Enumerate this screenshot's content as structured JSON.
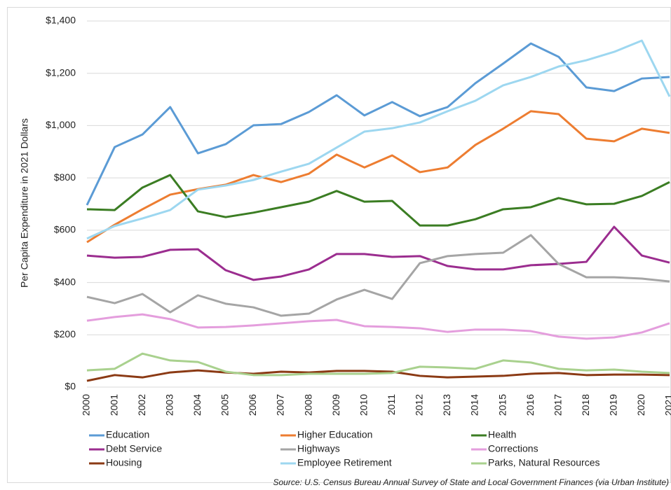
{
  "chart_data": {
    "type": "line",
    "y_label": "Per Capita Expenditure in  2021 Dollars",
    "source": "Source: U.S. Census Bureau Annual Survey of State and Local Government Finances (via Urban Institute)",
    "x": [
      2000,
      2001,
      2002,
      2003,
      2004,
      2005,
      2006,
      2007,
      2008,
      2009,
      2010,
      2011,
      2012,
      2013,
      2014,
      2015,
      2016,
      2017,
      2018,
      2019,
      2020,
      2021
    ],
    "xlim": [
      2000,
      2021
    ],
    "ylim": [
      0,
      1400
    ],
    "yticks": [
      {
        "value": 0,
        "label": "$0"
      },
      {
        "value": 200,
        "label": "$200"
      },
      {
        "value": 400,
        "label": "$400"
      },
      {
        "value": 600,
        "label": "$600"
      },
      {
        "value": 800,
        "label": "$800"
      },
      {
        "value": 1000,
        "label": "$1,000"
      },
      {
        "value": 1200,
        "label": "$1,200"
      },
      {
        "value": 1400,
        "label": "$1,400"
      }
    ],
    "grid": true,
    "legend": "bottom",
    "series": [
      {
        "name": "Education",
        "color": "#5b9bd5",
        "values": [
          696,
          918,
          966,
          1071,
          894,
          929,
          1001,
          1006,
          1052,
          1116,
          1039,
          1090,
          1036,
          1071,
          1162,
          1237,
          1314,
          1263,
          1146,
          1132,
          1180,
          1186
        ]
      },
      {
        "name": "Higher Education",
        "color": "#ed7d31",
        "values": [
          554,
          621,
          680,
          736,
          757,
          774,
          811,
          784,
          816,
          889,
          840,
          886,
          822,
          840,
          926,
          988,
          1055,
          1044,
          950,
          940,
          988,
          972
        ]
      },
      {
        "name": "Health",
        "color": "#3b7d23",
        "values": [
          680,
          677,
          763,
          811,
          672,
          650,
          667,
          688,
          709,
          750,
          709,
          712,
          618,
          618,
          642,
          680,
          688,
          723,
          699,
          701,
          731,
          784
        ]
      },
      {
        "name": "Debt Service",
        "color": "#9b2d8f",
        "values": [
          503,
          495,
          498,
          525,
          527,
          447,
          410,
          423,
          450,
          509,
          509,
          498,
          501,
          463,
          450,
          450,
          466,
          471,
          479,
          613,
          503,
          476
        ]
      },
      {
        "name": "Highways",
        "color": "#a5a5a5",
        "values": [
          345,
          321,
          356,
          286,
          351,
          319,
          305,
          273,
          281,
          335,
          372,
          337,
          474,
          501,
          509,
          514,
          581,
          471,
          420,
          420,
          415,
          404
        ]
      },
      {
        "name": "Corrections",
        "color": "#e49edd",
        "values": [
          254,
          268,
          278,
          260,
          228,
          230,
          236,
          244,
          252,
          257,
          233,
          230,
          225,
          211,
          220,
          220,
          214,
          193,
          185,
          190,
          209,
          244
        ]
      },
      {
        "name": "Housing",
        "color": "#8b3a14",
        "values": [
          24,
          46,
          37,
          56,
          64,
          56,
          51,
          59,
          56,
          62,
          62,
          59,
          43,
          37,
          40,
          43,
          51,
          54,
          46,
          48,
          48,
          46
        ]
      },
      {
        "name": "Employee Retirement",
        "color": "#9dd7f0",
        "values": [
          568,
          616,
          645,
          677,
          755,
          771,
          792,
          824,
          854,
          916,
          977,
          990,
          1012,
          1055,
          1095,
          1154,
          1186,
          1226,
          1250,
          1282,
          1325,
          1111
        ]
      },
      {
        "name": "Parks, Natural Resources",
        "color": "#a9d18e",
        "values": [
          64,
          70,
          128,
          102,
          96,
          59,
          46,
          46,
          51,
          51,
          51,
          54,
          78,
          75,
          70,
          102,
          94,
          70,
          64,
          67,
          59,
          54
        ]
      }
    ]
  }
}
